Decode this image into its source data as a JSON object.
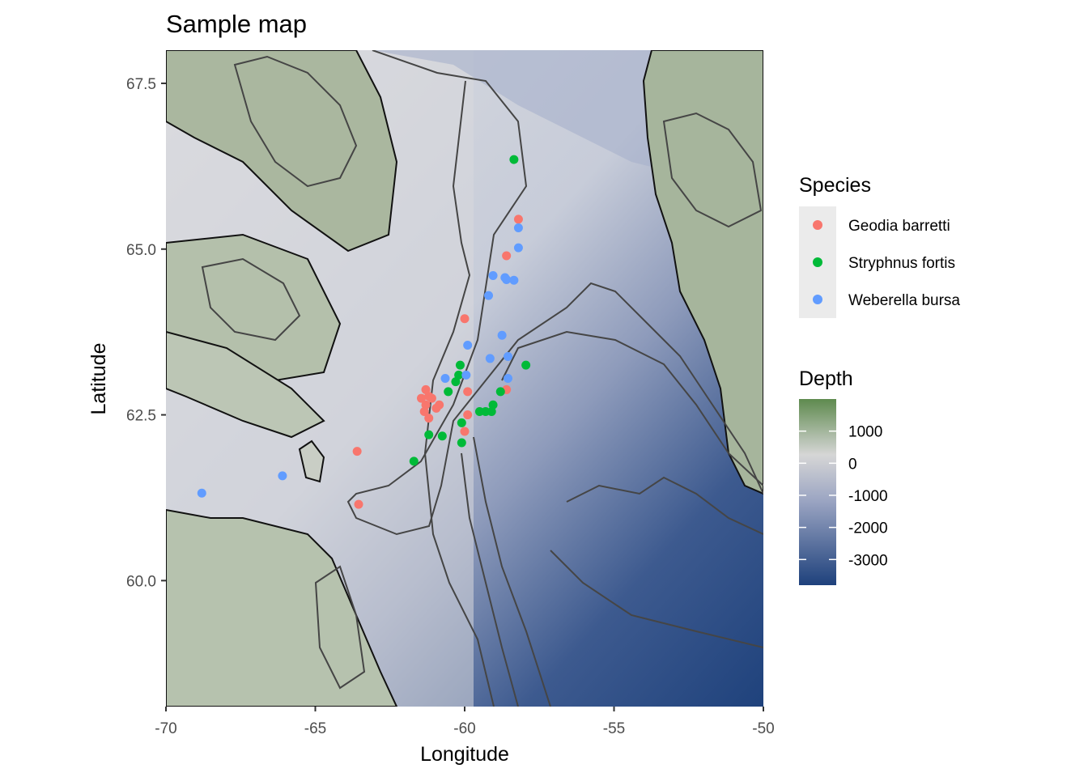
{
  "chart_data": {
    "type": "scatter",
    "title": "Sample map",
    "xlabel": "Longitude",
    "ylabel": "Latitude",
    "xlim": [
      -70,
      -50
    ],
    "ylim": [
      58.1,
      68.0
    ],
    "x_ticks": [
      -70,
      -65,
      -60,
      -55,
      -50
    ],
    "x_tick_labels": [
      "-70",
      "-65",
      "-60",
      "-55",
      "-50"
    ],
    "y_ticks": [
      60.0,
      62.5,
      65.0,
      67.5
    ],
    "y_tick_labels": [
      "60.0",
      "62.5",
      "65.0",
      "67.5"
    ],
    "grid": false,
    "legend_position": "right",
    "species_legend": {
      "title": "Species",
      "entries": [
        {
          "name": "Geodia barretti",
          "color": "#F8766D"
        },
        {
          "name": "Stryphnus fortis",
          "color": "#00BA38"
        },
        {
          "name": "Weberella bursa",
          "color": "#619CFF"
        }
      ]
    },
    "depth_legend": {
      "title": "Depth",
      "labels": [
        "1000",
        "0",
        "-1000",
        "-2000",
        "-3000"
      ],
      "values": [
        1000,
        0,
        -1000,
        -2000,
        -3000
      ],
      "range": [
        -3800,
        2000
      ],
      "colors": {
        "high": "#5E8A4E",
        "mid": "#D6D6D6",
        "low": "#1E417C"
      }
    },
    "series": [
      {
        "name": "Geodia barretti",
        "color": "#F8766D",
        "points": [
          {
            "lon": -58.2,
            "lat": 65.45
          },
          {
            "lon": -58.6,
            "lat": 64.9
          },
          {
            "lon": -60.0,
            "lat": 63.95
          },
          {
            "lon": -59.9,
            "lat": 62.85
          },
          {
            "lon": -59.9,
            "lat": 62.5
          },
          {
            "lon": -60.0,
            "lat": 62.25
          },
          {
            "lon": -58.6,
            "lat": 62.88
          },
          {
            "lon": -61.3,
            "lat": 62.88
          },
          {
            "lon": -61.45,
            "lat": 62.75
          },
          {
            "lon": -61.2,
            "lat": 62.78
          },
          {
            "lon": -61.1,
            "lat": 62.75
          },
          {
            "lon": -61.3,
            "lat": 62.65
          },
          {
            "lon": -60.95,
            "lat": 62.6
          },
          {
            "lon": -60.85,
            "lat": 62.65
          },
          {
            "lon": -61.35,
            "lat": 62.55
          },
          {
            "lon": -61.2,
            "lat": 62.45
          },
          {
            "lon": -63.6,
            "lat": 61.95
          },
          {
            "lon": -63.55,
            "lat": 61.15
          }
        ]
      },
      {
        "name": "Stryphnus fortis",
        "color": "#00BA38",
        "points": [
          {
            "lon": -58.35,
            "lat": 66.35
          },
          {
            "lon": -57.95,
            "lat": 63.25
          },
          {
            "lon": -60.15,
            "lat": 63.25
          },
          {
            "lon": -60.2,
            "lat": 63.1
          },
          {
            "lon": -60.3,
            "lat": 63.0
          },
          {
            "lon": -60.55,
            "lat": 62.85
          },
          {
            "lon": -58.8,
            "lat": 62.85
          },
          {
            "lon": -59.05,
            "lat": 62.65
          },
          {
            "lon": -59.3,
            "lat": 62.55
          },
          {
            "lon": -59.1,
            "lat": 62.55
          },
          {
            "lon": -59.5,
            "lat": 62.55
          },
          {
            "lon": -60.1,
            "lat": 62.38
          },
          {
            "lon": -61.2,
            "lat": 62.2
          },
          {
            "lon": -60.75,
            "lat": 62.18
          },
          {
            "lon": -60.1,
            "lat": 62.08
          },
          {
            "lon": -61.7,
            "lat": 61.8
          }
        ]
      },
      {
        "name": "Weberella bursa",
        "color": "#619CFF",
        "points": [
          {
            "lon": -58.2,
            "lat": 65.32
          },
          {
            "lon": -58.2,
            "lat": 65.02
          },
          {
            "lon": -59.05,
            "lat": 64.6
          },
          {
            "lon": -58.65,
            "lat": 64.57
          },
          {
            "lon": -58.6,
            "lat": 64.54
          },
          {
            "lon": -58.35,
            "lat": 64.53
          },
          {
            "lon": -59.2,
            "lat": 64.3
          },
          {
            "lon": -58.75,
            "lat": 63.7
          },
          {
            "lon": -59.9,
            "lat": 63.55
          },
          {
            "lon": -58.55,
            "lat": 63.38
          },
          {
            "lon": -59.15,
            "lat": 63.35
          },
          {
            "lon": -59.95,
            "lat": 63.1
          },
          {
            "lon": -58.55,
            "lat": 63.05
          },
          {
            "lon": -60.65,
            "lat": 63.05
          },
          {
            "lon": -66.1,
            "lat": 61.58
          },
          {
            "lon": -68.8,
            "lat": 61.32
          }
        ]
      }
    ]
  }
}
